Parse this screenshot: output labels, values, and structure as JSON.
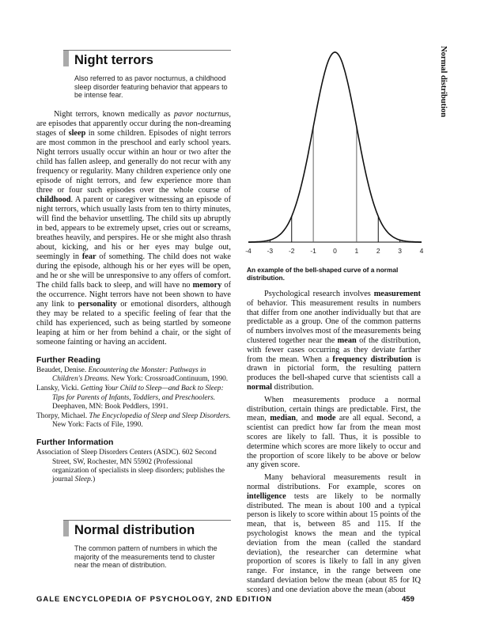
{
  "side_header": "Normal distribution",
  "night_terrors": {
    "title": "Night terrors",
    "definition": "Also referred to as pavor nocturnus, a childhood sleep disorder featuring behavior that appears to be intense fear.",
    "body": [
      [
        {
          "t": "Night terrors, known medically as "
        },
        {
          "t": "pavor nocturnus,",
          "i": true
        },
        {
          "t": " are episodes that apparently occur during the non-dreaming stages of "
        },
        {
          "t": "sleep",
          "b": true
        },
        {
          "t": " in some children. Episodes of night terrors are most common in the preschool and early school years. Night terrors usually occur within an hour or two after the child has fallen asleep, and generally do not recur with any frequency or regularity. Many children experience only one episode of night terrors, and few experience more than three or four such episodes over the whole course of "
        },
        {
          "t": "childhood",
          "b": true
        },
        {
          "t": ". A parent or caregiver witnessing an episode of night terrors, which usually lasts from ten to thirty minutes, will find the behavior unsettling. The child sits up abruptly in bed, appears to be extremely upset, cries out or screams, breathes heavily, and perspires. He or she might also thrash about, kicking, and his or her eyes may bulge out, seemingly in "
        },
        {
          "t": "fear",
          "b": true
        },
        {
          "t": " of something. The child does not wake during the episode, although his or her eyes will be open, and he or she will be unresponsive to any offers of comfort. The child falls back to sleep, and will have no "
        },
        {
          "t": "memory",
          "b": true
        },
        {
          "t": " of the occurrence. Night terrors have not been shown to have any link to "
        },
        {
          "t": "personality",
          "b": true
        },
        {
          "t": " or emotional disorders, although they may be related to a specific feeling of fear that the child has experienced, such as being startled by someone leaping at him or her from behind a chair, or the sight of someone fainting or having an accident."
        }
      ]
    ],
    "further_reading_heading": "Further Reading",
    "further_reading": [
      [
        {
          "t": "Beaudet, Denise. "
        },
        {
          "t": "Encountering the Monster: Pathways in Children's Dreams.",
          "i": true
        },
        {
          "t": " New York: CrossroadContinuum, 1990."
        }
      ],
      [
        {
          "t": "Lansky, Vicki. "
        },
        {
          "t": "Getting Your Child to Sleep—and Back to Sleep: Tips for Parents of Infants, Toddlers, and Preschoolers.",
          "i": true
        },
        {
          "t": " Deephaven, MN: Book Peddlers, 1991."
        }
      ],
      [
        {
          "t": "Thorpy, Michael. "
        },
        {
          "t": "The Encyclopedia of Sleep and Sleep Disorders.",
          "i": true
        },
        {
          "t": " New York: Facts of File, 1990."
        }
      ]
    ],
    "further_info_heading": "Further Information",
    "further_info": [
      [
        {
          "t": "Association of Sleep Disorders Centers (ASDC). 602 Second Street, SW, Rochester, MN 55902 (Professional organization of specialists in sleep disorders; publishes the journal "
        },
        {
          "t": "Sleep.",
          "i": true
        },
        {
          "t": ")"
        }
      ]
    ]
  },
  "normal_distribution": {
    "title": "Normal distribution",
    "definition": "The common pattern of numbers in which the majority of the measurements tend to cluster near the mean of distribution.",
    "caption": "An example of the bell-shaped curve of a normal distribution.",
    "body": [
      [
        {
          "t": "Psychological research involves "
        },
        {
          "t": "measurement",
          "b": true
        },
        {
          "t": " of behavior. This measurement results in numbers that differ from one another individually but that are predictable as a group. One of the common patterns of numbers involves most of the measurements being clustered together near the "
        },
        {
          "t": "mean",
          "b": true
        },
        {
          "t": " of the distribution, with fewer cases occurring as they deviate farther from the mean. When a "
        },
        {
          "t": "frequency distribution",
          "b": true
        },
        {
          "t": " is drawn in pictorial form, the resulting pattern produces the bell-shaped curve that scientists call a "
        },
        {
          "t": "normal",
          "b": true
        },
        {
          "t": " distribution."
        }
      ],
      [
        {
          "t": "When measurements produce a normal distribution, certain things are predictable. First, the mean, "
        },
        {
          "t": "median",
          "b": true
        },
        {
          "t": ", and "
        },
        {
          "t": "mode",
          "b": true
        },
        {
          "t": " are all equal. Second, a scientist can predict how far from the mean most scores are likely to fall. Thus, it is possible to determine which scores are more likely to occur and the proportion of score likely to be above or below any given score."
        }
      ],
      [
        {
          "t": "Many behavioral measurements result in normal distributions. For example, scores on "
        },
        {
          "t": "intelligence",
          "b": true
        },
        {
          "t": " tests are likely to be normally distributed. The mean is about 100 and a typical person is likely to score within about 15 points of the mean, that is, between 85 and 115. If the psychologist knows the mean and the typical deviation from the mean (called the standard deviation), the researcher can determine what proportion of scores is likely to fall in any given range. For instance, in the range between one standard deviation below the mean (about 85 for IQ scores) and one deviation above the mean (about"
        }
      ]
    ]
  },
  "chart_data": {
    "type": "line",
    "curve": "normal density",
    "mean": 0,
    "sd": 1,
    "xlim": [
      -4,
      4
    ],
    "x_ticks": [
      "-4",
      "-3",
      "-2",
      "-1",
      "0",
      "1",
      "2",
      "3",
      "4"
    ],
    "vertical_lines_at": [
      -3,
      -2,
      -1,
      1,
      2,
      3
    ],
    "grid": false,
    "title": "",
    "xlabel": "",
    "ylabel": ""
  },
  "footer": {
    "publication": "GALE ENCYCLOPEDIA OF PSYCHOLOGY, 2ND EDITION",
    "page_number": "459"
  }
}
